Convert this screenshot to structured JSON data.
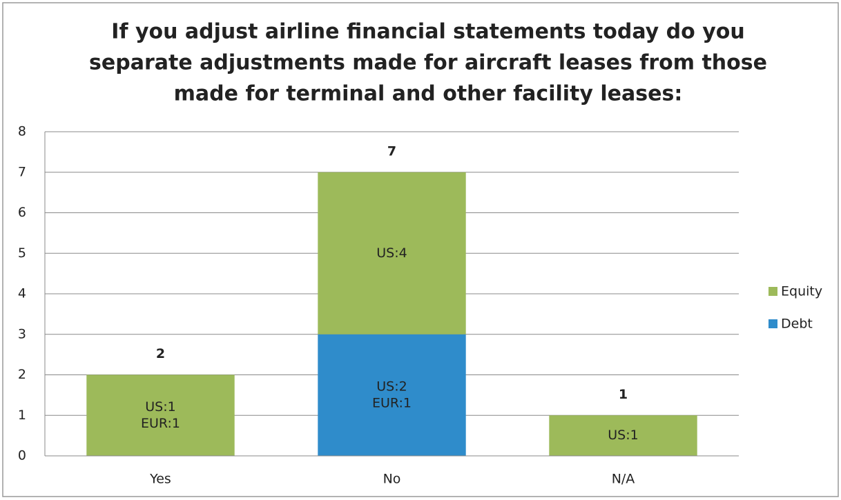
{
  "chart_data": {
    "type": "stacked_bar",
    "title": [
      "If you adjust airline financial statements today do you",
      "separate adjustments made for aircraft leases from those",
      "made for terminal and other facility leases:"
    ],
    "categories": [
      "Yes",
      "No",
      "N/A"
    ],
    "series": [
      {
        "name": "Debt",
        "color": "#2f8ccb",
        "values": [
          0,
          3,
          0
        ],
        "segment_labels": [
          null,
          [
            "US:2",
            "EUR:1"
          ],
          null
        ]
      },
      {
        "name": "Equity",
        "color": "#9dba5a",
        "values": [
          2,
          4,
          1
        ],
        "segment_labels": [
          [
            "US:1",
            "EUR:1"
          ],
          [
            "US:4"
          ],
          [
            "US:1"
          ]
        ]
      }
    ],
    "totals": [
      2,
      7,
      1
    ],
    "ylim": [
      0,
      8
    ],
    "yticks": [
      0,
      1,
      2,
      3,
      4,
      5,
      6,
      7,
      8
    ],
    "grid": true,
    "legend": "right"
  }
}
